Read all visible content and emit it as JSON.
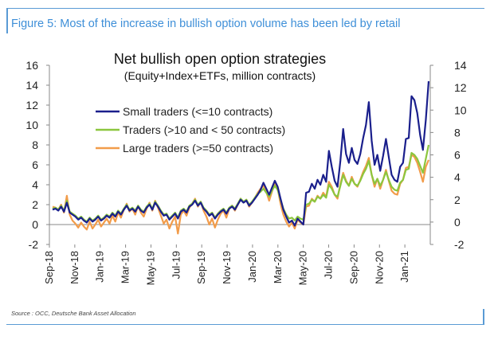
{
  "figure_title": "Figure 5: Most of the increase in bullish option volume has been led by retail",
  "source": "Source : OCC, Deutsche Bank Asset Allocation",
  "colors": {
    "frame": "#5a9bd5",
    "title": "#3e8fd8",
    "small": "#1a1f8c",
    "traders": "#8cc63e",
    "large": "#f29c4a"
  },
  "chart_data": {
    "type": "line",
    "title": "Net bullish open option strategies",
    "subtitle": "(Equity+Index+ETFs, million contracts)",
    "ylim_left": [
      -2,
      16
    ],
    "ylim_right": [
      -2,
      14
    ],
    "yticks_left": [
      "-2",
      "0",
      "2",
      "4",
      "6",
      "8",
      "10",
      "12",
      "14",
      "16"
    ],
    "yticks_right": [
      "-2",
      "0",
      "2",
      "4",
      "6",
      "8",
      "10",
      "12",
      "14"
    ],
    "x_start": "Sep-18",
    "x_end": "Feb-21",
    "x_tick_labels": [
      "Sep-18",
      "Nov-18",
      "Jan-19",
      "Mar-19",
      "May-19",
      "Jul-19",
      "Sep-19",
      "Nov-19",
      "Jan-20",
      "Mar-20",
      "May-20",
      "Jul-20",
      "Sep-20",
      "Nov-20",
      "Jan-21"
    ],
    "legend_position": "upper-left",
    "series": [
      {
        "name": "Small traders (<=10 contracts)",
        "color": "#1a1f8c",
        "values": [
          1.5,
          1.6,
          1.4,
          1.8,
          1.3,
          2.2,
          1.2,
          1.0,
          0.8,
          0.5,
          0.7,
          0.4,
          0.2,
          0.6,
          0.3,
          0.5,
          0.8,
          0.4,
          0.6,
          0.9,
          0.7,
          1.1,
          0.8,
          1.3,
          1.0,
          1.5,
          1.9,
          1.4,
          1.6,
          1.3,
          1.8,
          1.4,
          1.2,
          1.7,
          2.0,
          1.5,
          2.2,
          1.8,
          1.3,
          0.9,
          1.0,
          0.5,
          0.8,
          1.1,
          0.6,
          1.3,
          1.5,
          1.2,
          1.8,
          2.0,
          2.4,
          1.9,
          2.2,
          1.6,
          1.3,
          0.9,
          1.1,
          0.6,
          1.0,
          1.3,
          1.5,
          1.1,
          1.6,
          1.8,
          1.5,
          2.0,
          2.5,
          2.2,
          2.4,
          1.9,
          2.2,
          2.6,
          3.0,
          3.5,
          4.2,
          3.6,
          3.0,
          3.7,
          4.4,
          3.8,
          2.6,
          1.5,
          0.8,
          0.2,
          0.4,
          -0.1,
          0.6,
          0.3,
          0.0,
          3.2,
          3.3,
          4.1,
          3.6,
          4.5,
          4.0,
          5.0,
          4.3,
          7.4,
          5.8,
          4.4,
          3.8,
          6.4,
          9.6,
          7.1,
          6.2,
          7.7,
          6.5,
          6.1,
          7.1,
          8.7,
          10.0,
          12.3,
          8.4,
          6.0,
          7.0,
          5.4,
          6.9,
          8.6,
          6.8,
          5.0,
          4.5,
          4.3,
          5.8,
          6.2,
          8.6,
          8.7,
          12.9,
          12.5,
          11.2,
          9.0,
          7.5,
          10.5,
          14.4
        ]
      },
      {
        "name": "Traders (>10 and < 50 contracts)",
        "color": "#8cc63e",
        "values": [
          1.6,
          1.7,
          1.5,
          1.9,
          1.4,
          2.4,
          1.3,
          1.1,
          0.9,
          0.6,
          0.8,
          0.5,
          0.3,
          0.7,
          0.4,
          0.6,
          0.9,
          0.5,
          0.7,
          1.0,
          0.8,
          1.2,
          0.9,
          1.4,
          1.1,
          1.6,
          2.0,
          1.5,
          1.7,
          1.4,
          1.9,
          1.5,
          1.3,
          1.8,
          2.1,
          1.6,
          2.3,
          1.9,
          1.4,
          1.0,
          1.1,
          0.6,
          0.9,
          1.2,
          0.7,
          1.4,
          1.6,
          1.3,
          1.9,
          2.1,
          2.5,
          2.0,
          2.3,
          1.7,
          1.4,
          1.0,
          1.2,
          0.7,
          1.1,
          1.4,
          1.6,
          1.2,
          1.7,
          1.9,
          1.6,
          2.1,
          2.6,
          2.3,
          2.5,
          2.0,
          2.3,
          2.7,
          3.1,
          3.3,
          3.6,
          3.2,
          2.8,
          3.4,
          3.9,
          3.5,
          2.5,
          1.6,
          1.0,
          0.6,
          0.7,
          0.4,
          0.8,
          0.6,
          0.5,
          2.0,
          2.1,
          2.5,
          2.3,
          2.8,
          2.6,
          3.0,
          2.7,
          4.0,
          3.6,
          3.0,
          2.8,
          3.9,
          5.0,
          4.3,
          3.9,
          4.6,
          4.1,
          3.9,
          4.4,
          5.1,
          5.6,
          6.4,
          5.0,
          4.1,
          4.6,
          3.9,
          4.5,
          5.3,
          4.5,
          3.8,
          3.5,
          3.4,
          4.2,
          4.5,
          5.5,
          5.6,
          7.2,
          7.0,
          6.6,
          5.9,
          5.2,
          6.6,
          8.0
        ]
      },
      {
        "name": "Large traders (>=50 contracts)",
        "color": "#f29c4a",
        "values": [
          1.8,
          1.7,
          1.5,
          2.0,
          1.2,
          2.9,
          1.0,
          0.4,
          0.1,
          -0.3,
          0.2,
          -0.2,
          -0.5,
          0.3,
          -0.4,
          0.0,
          0.5,
          -0.2,
          0.2,
          0.6,
          0.1,
          0.9,
          0.3,
          1.2,
          0.7,
          1.5,
          2.1,
          1.3,
          1.6,
          1.0,
          1.9,
          1.2,
          0.8,
          1.6,
          2.2,
          1.4,
          2.4,
          1.7,
          0.9,
          0.1,
          0.5,
          -0.4,
          0.3,
          0.8,
          -0.9,
          1.0,
          1.4,
          0.9,
          1.7,
          2.1,
          2.6,
          1.8,
          2.3,
          1.4,
          0.8,
          0.0,
          0.6,
          -0.3,
          0.5,
          1.1,
          1.4,
          0.7,
          1.6,
          1.9,
          1.4,
          2.0,
          2.6,
          2.2,
          2.5,
          1.8,
          2.2,
          2.7,
          3.2,
          3.6,
          3.9,
          3.3,
          2.4,
          3.3,
          4.2,
          3.6,
          2.1,
          1.0,
          0.3,
          -0.2,
          0.2,
          -0.4,
          0.5,
          0.2,
          0.0,
          1.8,
          1.9,
          2.6,
          2.3,
          2.9,
          2.6,
          3.2,
          2.8,
          4.3,
          3.8,
          3.0,
          2.6,
          4.1,
          5.2,
          4.4,
          3.9,
          4.8,
          4.1,
          3.8,
          4.5,
          5.3,
          5.9,
          6.7,
          5.0,
          3.8,
          4.6,
          3.6,
          4.5,
          5.5,
          4.4,
          3.4,
          3.1,
          3.0,
          4.1,
          4.5,
          5.7,
          5.8,
          7.0,
          6.8,
          6.2,
          5.3,
          4.3,
          5.8,
          6.5
        ]
      }
    ]
  }
}
